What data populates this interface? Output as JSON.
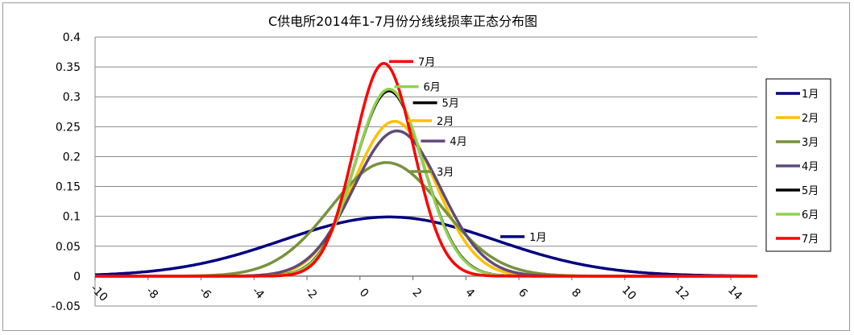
{
  "chart_data": {
    "type": "line",
    "title": "C供电所2014年1-7月份分线线损率正态分布图",
    "xlabel": "",
    "ylabel": "",
    "xlim": [
      -10,
      15
    ],
    "ylim": [
      -0.05,
      0.4
    ],
    "x_ticks": [
      "-10",
      "-8",
      "-6",
      "-4",
      "-2",
      "0",
      "2",
      "4",
      "6",
      "8",
      "10",
      "12",
      "14"
    ],
    "y_ticks": [
      "0.4",
      "0.35",
      "0.3",
      "0.25",
      "0.2",
      "0.15",
      "0.1",
      "0.05",
      "0",
      "-0.05"
    ],
    "grid": "horizontal",
    "legend_position": "right",
    "series": [
      {
        "name": "1月",
        "color": "#000080",
        "mean": 1.1,
        "peak": 0.099,
        "label_x": 5.3,
        "label_y": 0.066,
        "label": "1月"
      },
      {
        "name": "2月",
        "color": "#FFC000",
        "mean": 1.3,
        "peak": 0.259,
        "label_x": 1.8,
        "label_y": 0.26,
        "label": "2月"
      },
      {
        "name": "3月",
        "color": "#77933C",
        "mean": 1.0,
        "peak": 0.19,
        "label_x": 1.8,
        "label_y": 0.175,
        "label": "3月"
      },
      {
        "name": "4月",
        "color": "#604A7B",
        "mean": 1.4,
        "peak": 0.243,
        "label_x": 2.3,
        "label_y": 0.226,
        "label": "4月"
      },
      {
        "name": "5月",
        "color": "#000000",
        "mean": 1.1,
        "peak": 0.31,
        "label_x": 2.0,
        "label_y": 0.29,
        "label": "5月"
      },
      {
        "name": "6月",
        "color": "#92D050",
        "mean": 1.1,
        "peak": 0.313,
        "label_x": 1.3,
        "label_y": 0.317,
        "label": "6月"
      },
      {
        "name": "7月",
        "color": "#FF0000",
        "mean": 0.9,
        "peak": 0.356,
        "label_x": 1.1,
        "label_y": 0.359,
        "label": "7月"
      }
    ]
  }
}
